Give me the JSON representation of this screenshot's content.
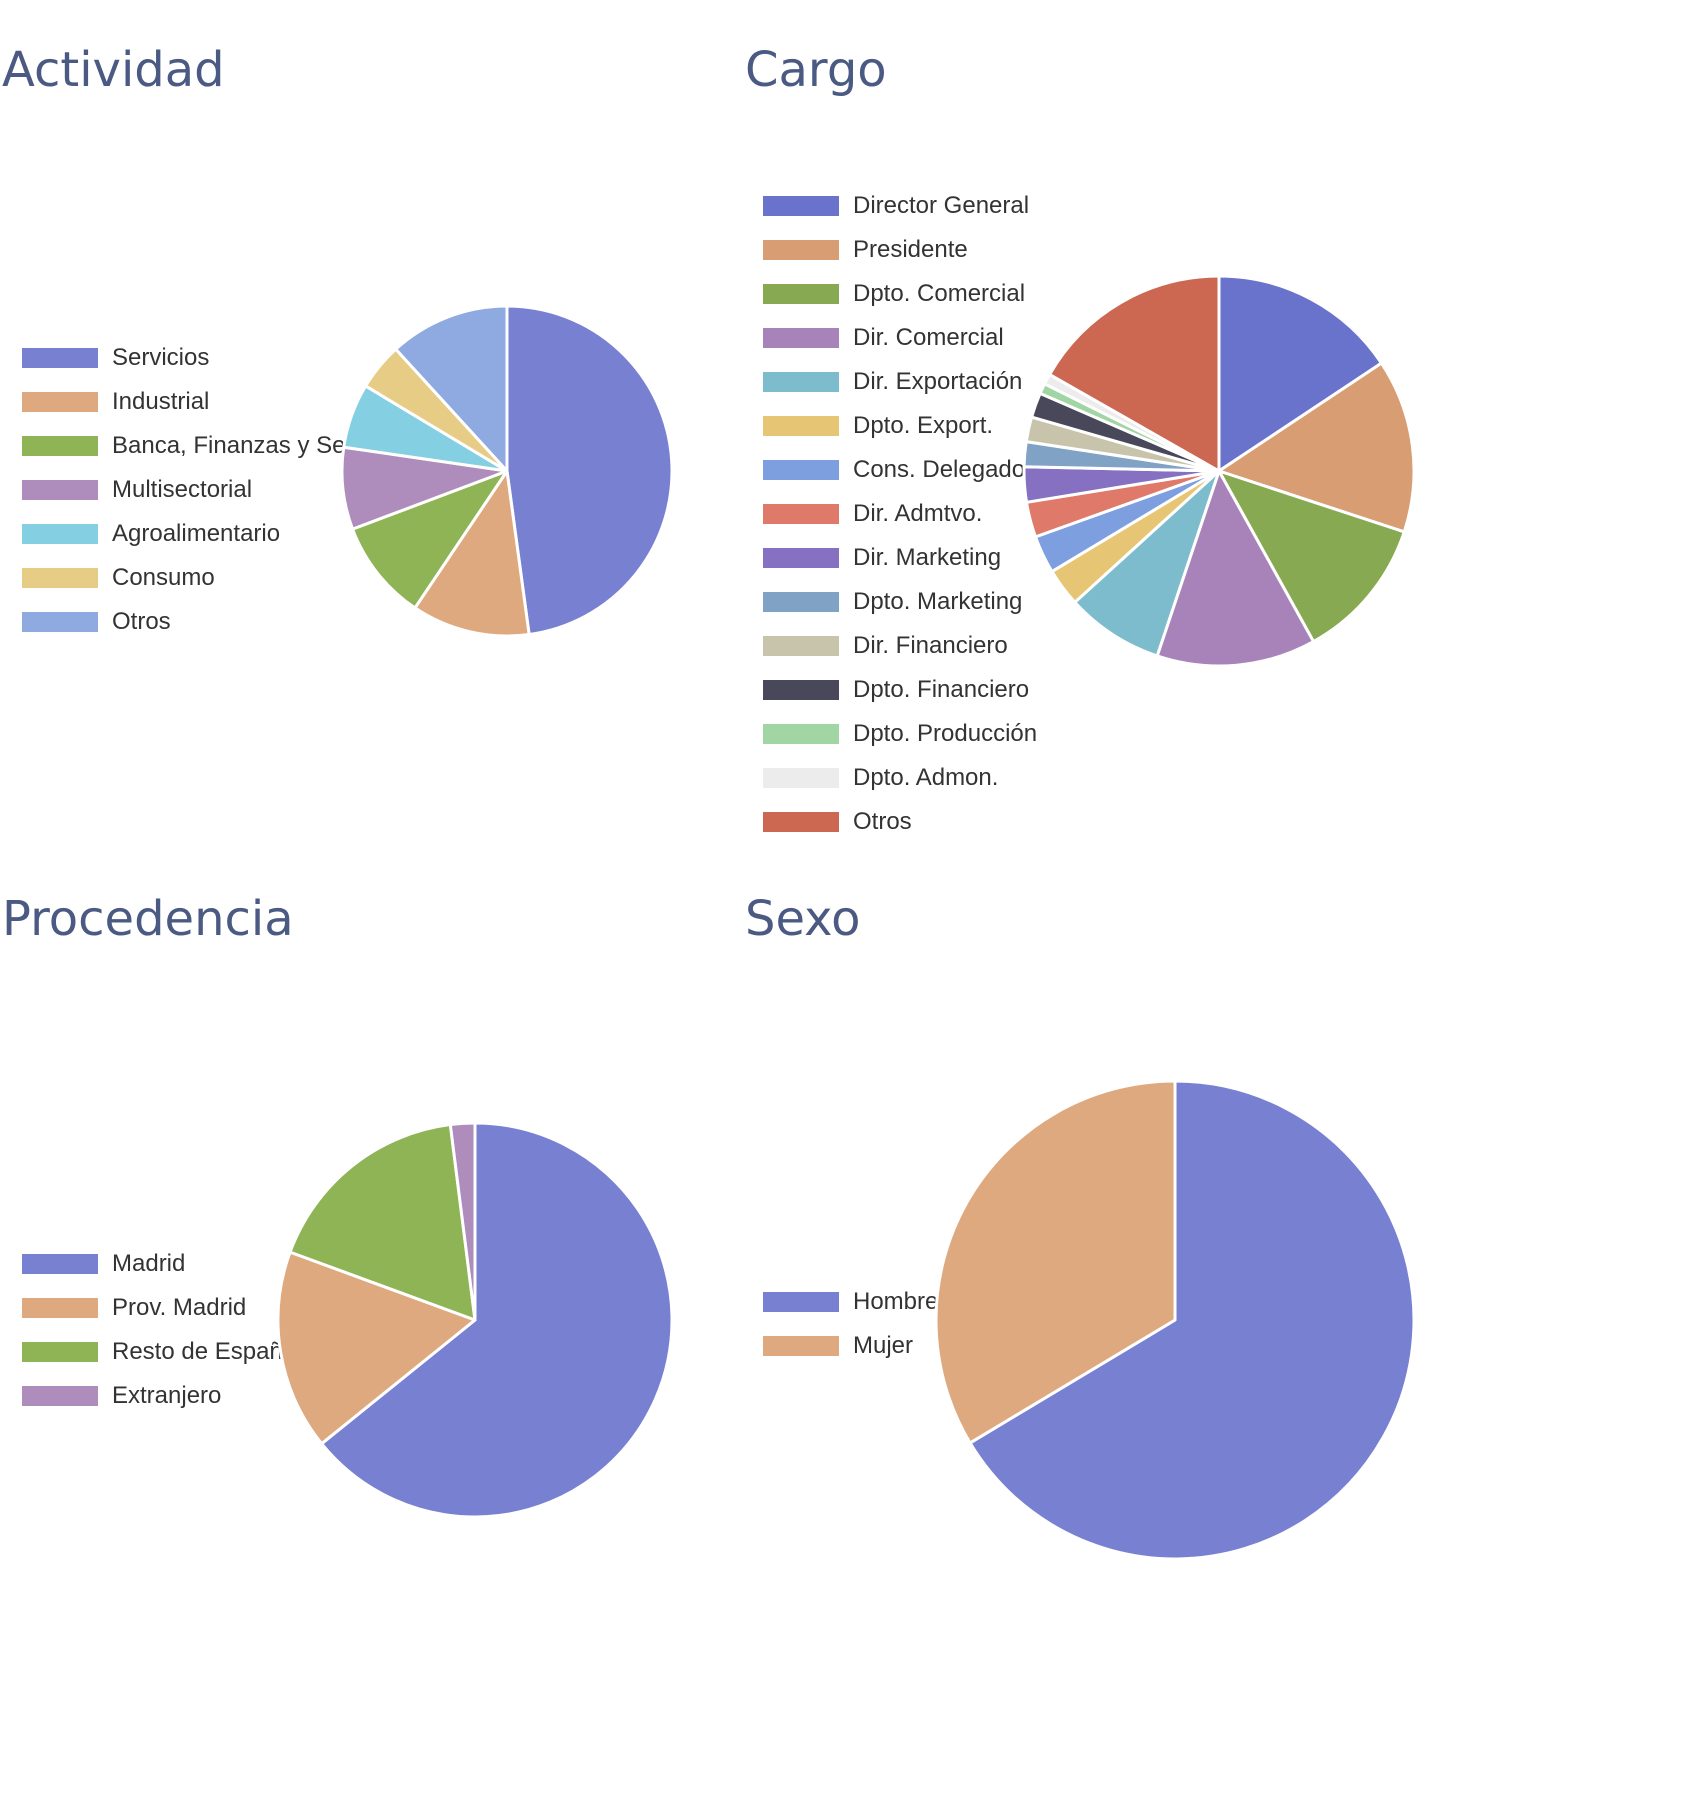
{
  "chart_data": [
    {
      "type": "pie",
      "title": "Actividad",
      "categories": [
        "Servicios",
        "Industrial",
        "Banca, Finanzas y Seguro",
        "Multisectorial",
        "Agroalimentario",
        "Consumo",
        "Otros"
      ],
      "values": [
        44.7,
        10.8,
        9.2,
        7.5,
        5.9,
        4.3,
        11.0
      ],
      "colors": [
        "#7880d2",
        "#dea97f",
        "#8eb456",
        "#ae8cbb",
        "#84d0e2",
        "#e7cc86",
        "#8eaae0"
      ],
      "legend_position": "left"
    },
    {
      "type": "pie",
      "title": "Cargo",
      "categories": [
        "Director General",
        "Presidente",
        "Dpto. Comercial",
        "Dir. Comercial",
        "Dir. Exportación",
        "Dpto. Export.",
        "Cons. Delegado",
        "Dir. Admtvo.",
        "Dir. Marketing",
        "Dpto. Marketing",
        "Dir. Financiero",
        "Dpto. Financiero",
        "Dpto. Producción",
        "Dpto. Admon.",
        "Otros"
      ],
      "values": [
        14.5,
        13.3,
        11.0,
        12.2,
        7.5,
        2.9,
        2.9,
        2.7,
        2.7,
        1.9,
        1.9,
        1.9,
        0.8,
        0.8,
        15.5
      ],
      "colors": [
        "#6a73cc",
        "#d89d72",
        "#87a951",
        "#a883b9",
        "#7dbccd",
        "#e6c674",
        "#7d9fdf",
        "#df7a6a",
        "#8670c2",
        "#7fa2c5",
        "#c8c4ab",
        "#48485a",
        "#a2d5a4",
        "#ececec",
        "#cc6852"
      ],
      "legend_position": "left"
    },
    {
      "type": "pie",
      "title": "Procedencia",
      "categories": [
        "Madrid",
        "Prov. Madrid",
        "Resto de España",
        "Extranjero"
      ],
      "values": [
        64.2,
        16.4,
        17.4,
        2.0
      ],
      "colors": [
        "#7880d2",
        "#dea97f",
        "#8eb456",
        "#ae8cbb"
      ],
      "legend_position": "left"
    },
    {
      "type": "pie",
      "title": "Sexo",
      "categories": [
        "Hombre",
        "Mujer"
      ],
      "values": [
        66.4,
        33.6
      ],
      "colors": [
        "#7880d2",
        "#dea97f"
      ],
      "legend_position": "left"
    }
  ]
}
